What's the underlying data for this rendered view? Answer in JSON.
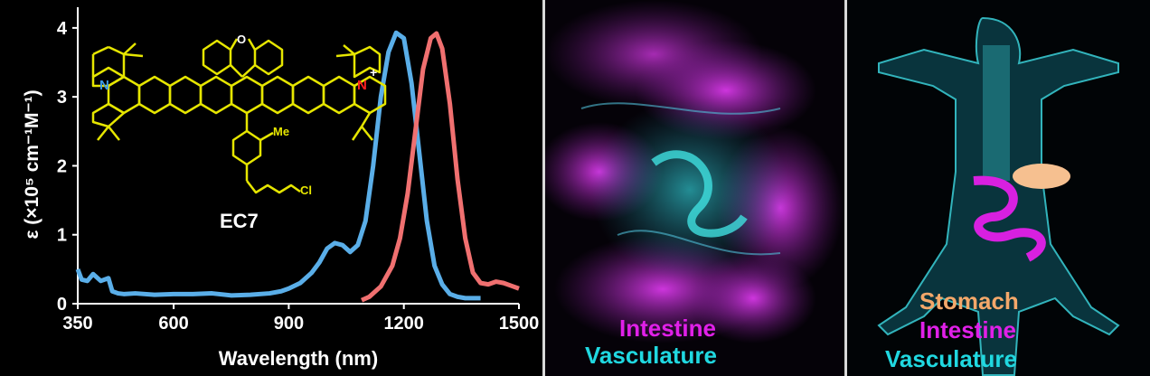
{
  "chart_data": {
    "type": "line",
    "xlabel": "Wavelength (nm)",
    "ylabel": "ε (×10⁵ cm⁻¹M⁻¹)",
    "xlim": [
      350,
      1500
    ],
    "ylim": [
      0,
      4.3
    ],
    "xticks": [
      350,
      600,
      900,
      1200,
      1500
    ],
    "yticks": [
      0,
      1,
      2,
      3,
      4
    ],
    "series": [
      {
        "color": "#5aaee8",
        "x": [
          350,
          360,
          375,
          390,
          410,
          430,
          440,
          455,
          470,
          500,
          550,
          600,
          650,
          700,
          750,
          800,
          850,
          880,
          900,
          930,
          960,
          980,
          1000,
          1020,
          1040,
          1060,
          1080,
          1100,
          1120,
          1140,
          1160,
          1180,
          1200,
          1220,
          1240,
          1260,
          1280,
          1300,
          1320,
          1340,
          1360,
          1380,
          1400
        ],
        "y": [
          0.5,
          0.35,
          0.33,
          0.43,
          0.33,
          0.37,
          0.18,
          0.15,
          0.14,
          0.15,
          0.13,
          0.14,
          0.14,
          0.15,
          0.12,
          0.13,
          0.15,
          0.18,
          0.22,
          0.3,
          0.45,
          0.6,
          0.8,
          0.88,
          0.85,
          0.75,
          0.85,
          1.2,
          2.0,
          3.0,
          3.65,
          3.93,
          3.85,
          3.2,
          2.2,
          1.2,
          0.55,
          0.28,
          0.14,
          0.1,
          0.08,
          0.08,
          0.08
        ]
      },
      {
        "color": "#f07070",
        "x": [
          1090,
          1110,
          1140,
          1170,
          1190,
          1210,
          1230,
          1250,
          1270,
          1285,
          1300,
          1320,
          1340,
          1360,
          1380,
          1400,
          1420,
          1440,
          1460,
          1480,
          1500
        ],
        "y": [
          0.05,
          0.1,
          0.25,
          0.55,
          0.95,
          1.6,
          2.5,
          3.4,
          3.85,
          3.92,
          3.7,
          2.9,
          1.8,
          0.95,
          0.45,
          0.3,
          0.28,
          0.32,
          0.3,
          0.26,
          0.22
        ]
      }
    ]
  },
  "molecule": {
    "label": "EC7",
    "atoms": {
      "n_left": "N",
      "n_right": "N",
      "charge": "+",
      "oxygen": "O",
      "methyl": "Me",
      "chloro": "Cl"
    }
  },
  "image_panels": [
    {
      "labels": [
        {
          "text": "Intestine",
          "color": "#e020e8"
        },
        {
          "text": "Vasculature",
          "color": "#20d8e0"
        }
      ]
    },
    {
      "labels": [
        {
          "text": "Stomach",
          "color": "#f4a86a"
        },
        {
          "text": "Intestine",
          "color": "#e020e8"
        },
        {
          "text": "Vasculature",
          "color": "#20d8e0"
        }
      ]
    }
  ]
}
